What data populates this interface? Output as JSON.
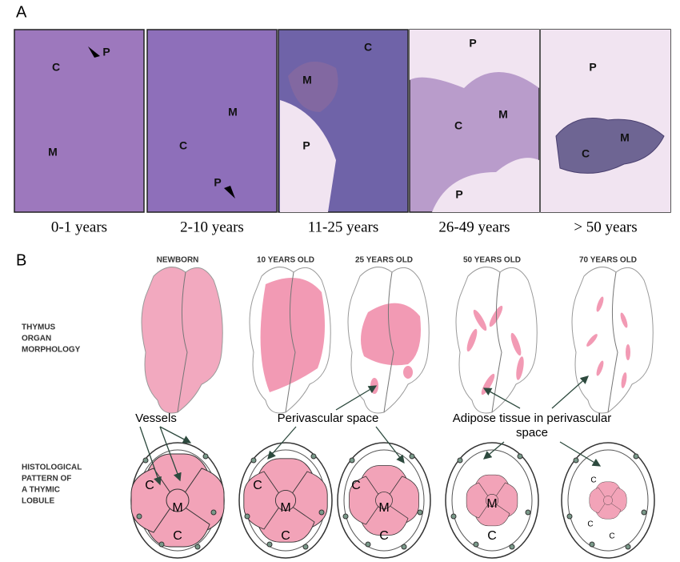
{
  "panel_a": {
    "label": "A",
    "images": [
      {
        "labels": [
          "C",
          "P",
          "M"
        ],
        "caption": "0-1 years"
      },
      {
        "labels": [
          "M",
          "C",
          "P"
        ],
        "caption": "2-10 years"
      },
      {
        "labels": [
          "C",
          "M",
          "P"
        ],
        "caption": "11-25 years"
      },
      {
        "labels": [
          "P",
          "C",
          "M",
          "P"
        ],
        "caption": "26-49 years"
      },
      {
        "labels": [
          "P",
          "M",
          "C"
        ],
        "caption": "> 50 years"
      }
    ]
  },
  "panel_b": {
    "label": "B",
    "columns": [
      "NEWBORN",
      "10 YEARS OLD",
      "25 YEARS OLD",
      "50 YEARS OLD",
      "70 YEARS OLD"
    ],
    "row_labels": [
      [
        "THYMUS",
        "ORGAN",
        "MORPHOLOGY"
      ],
      [
        "HISTOLOGICAL",
        "PATTERN OF",
        "A THYMIC",
        "LOBULE"
      ]
    ],
    "annotations": [
      "Vessels",
      "Perivascular space",
      [
        "Adipose tissue in perivascular",
        "space"
      ]
    ],
    "lobules": [
      {
        "labels": [
          "C",
          "M",
          "C"
        ]
      },
      {
        "labels": [
          "C",
          "M",
          "C"
        ]
      },
      {
        "labels": [
          "C",
          "M",
          "C"
        ]
      },
      {
        "labels": [
          "M",
          "C"
        ]
      },
      {
        "labels": [
          "C",
          "C",
          "C"
        ]
      }
    ]
  }
}
